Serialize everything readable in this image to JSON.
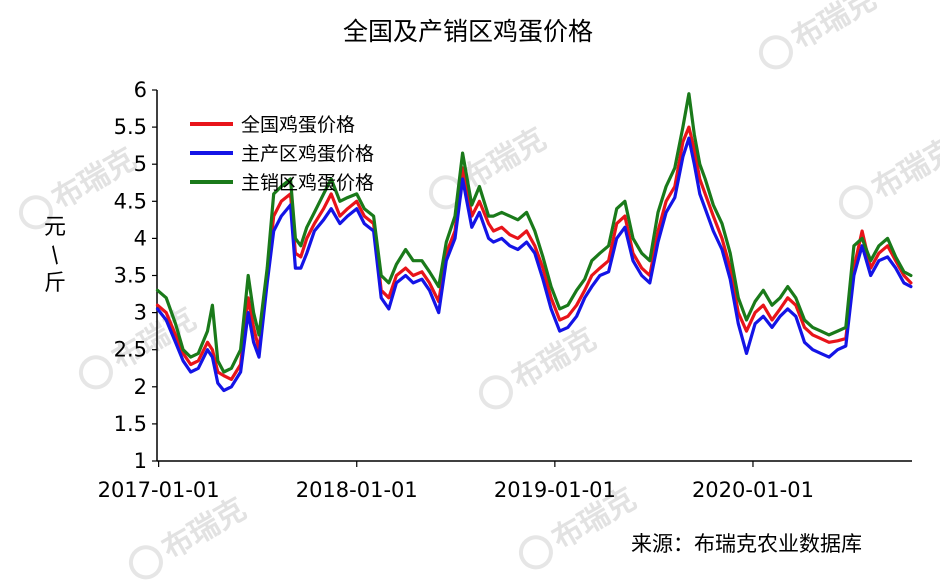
{
  "chart_data": {
    "type": "line",
    "title": "全国及产销区鸡蛋价格",
    "ylabel": "元/斤",
    "source": "来源：布瑞克农业数据库",
    "watermark": "布瑞克",
    "ylim": [
      1,
      6
    ],
    "yticks": [
      "1",
      "1.5",
      "2",
      "2.5",
      "3",
      "3.5",
      "4",
      "4.5",
      "5",
      "5.5",
      "6"
    ],
    "xlim": [
      "2016-12-29",
      "2020-10-20"
    ],
    "xticks": [
      {
        "label": "2017-01-01",
        "date": "2017-01-01"
      },
      {
        "label": "2018-01-01",
        "date": "2018-01-01"
      },
      {
        "label": "2019-01-01",
        "date": "2019-01-01"
      },
      {
        "label": "2020-01-01",
        "date": "2020-01-01"
      }
    ],
    "legend_position": "top-left",
    "x": [
      "2016-12-30",
      "2017-01-15",
      "2017-02-01",
      "2017-02-15",
      "2017-03-01",
      "2017-03-15",
      "2017-04-01",
      "2017-04-10",
      "2017-04-20",
      "2017-05-01",
      "2017-05-15",
      "2017-06-01",
      "2017-06-15",
      "2017-06-25",
      "2017-07-05",
      "2017-07-20",
      "2017-08-01",
      "2017-08-15",
      "2017-09-01",
      "2017-09-10",
      "2017-09-20",
      "2017-10-01",
      "2017-10-15",
      "2017-11-01",
      "2017-11-15",
      "2017-12-01",
      "2017-12-15",
      "2018-01-01",
      "2018-01-15",
      "2018-02-01",
      "2018-02-15",
      "2018-03-01",
      "2018-03-15",
      "2018-04-01",
      "2018-04-15",
      "2018-05-01",
      "2018-05-15",
      "2018-06-01",
      "2018-06-15",
      "2018-07-01",
      "2018-07-15",
      "2018-08-01",
      "2018-08-15",
      "2018-09-01",
      "2018-09-10",
      "2018-09-25",
      "2018-10-10",
      "2018-10-25",
      "2018-11-10",
      "2018-11-25",
      "2018-12-10",
      "2018-12-25",
      "2019-01-10",
      "2019-01-25",
      "2019-02-10",
      "2019-02-25",
      "2019-03-10",
      "2019-03-25",
      "2019-04-10",
      "2019-04-25",
      "2019-05-10",
      "2019-05-25",
      "2019-06-10",
      "2019-06-25",
      "2019-07-10",
      "2019-07-25",
      "2019-08-10",
      "2019-08-25",
      "2019-09-05",
      "2019-09-15",
      "2019-09-25",
      "2019-10-05",
      "2019-10-20",
      "2019-11-05",
      "2019-11-20",
      "2019-12-05",
      "2019-12-20",
      "2020-01-05",
      "2020-01-20",
      "2020-02-05",
      "2020-02-20",
      "2020-03-05",
      "2020-03-20",
      "2020-04-05",
      "2020-04-20",
      "2020-05-05",
      "2020-05-20",
      "2020-06-05",
      "2020-06-20",
      "2020-07-05",
      "2020-07-20",
      "2020-08-05",
      "2020-08-20",
      "2020-09-05",
      "2020-09-20",
      "2020-10-05",
      "2020-10-18"
    ],
    "series": [
      {
        "name": "全国鸡蛋价格",
        "color": "#e8141a",
        "values": [
          3.1,
          3.0,
          2.7,
          2.45,
          2.3,
          2.35,
          2.6,
          2.5,
          2.2,
          2.15,
          2.1,
          2.3,
          3.2,
          2.8,
          2.5,
          3.5,
          4.3,
          4.5,
          4.6,
          3.8,
          3.75,
          4.0,
          4.2,
          4.4,
          4.6,
          4.3,
          4.4,
          4.5,
          4.3,
          4.2,
          3.3,
          3.2,
          3.5,
          3.6,
          3.5,
          3.55,
          3.4,
          3.15,
          3.8,
          4.1,
          4.95,
          4.3,
          4.5,
          4.2,
          4.1,
          4.15,
          4.05,
          4.0,
          4.1,
          3.9,
          3.6,
          3.2,
          2.9,
          2.95,
          3.1,
          3.3,
          3.5,
          3.6,
          3.7,
          4.2,
          4.3,
          3.8,
          3.6,
          3.5,
          4.1,
          4.5,
          4.7,
          5.3,
          5.5,
          5.2,
          4.8,
          4.6,
          4.3,
          4.0,
          3.6,
          3.0,
          2.75,
          3.0,
          3.1,
          2.9,
          3.05,
          3.2,
          3.1,
          2.8,
          2.7,
          2.65,
          2.6,
          2.62,
          2.65,
          3.6,
          4.1,
          3.6,
          3.8,
          3.9,
          3.7,
          3.5,
          3.4
        ]
      },
      {
        "name": "主产区鸡蛋价格",
        "color": "#1414e6",
        "values": [
          3.05,
          2.9,
          2.6,
          2.35,
          2.2,
          2.25,
          2.5,
          2.4,
          2.05,
          1.95,
          2.0,
          2.2,
          3.0,
          2.6,
          2.4,
          3.4,
          4.1,
          4.3,
          4.45,
          3.6,
          3.6,
          3.8,
          4.1,
          4.25,
          4.4,
          4.2,
          4.3,
          4.4,
          4.2,
          4.1,
          3.2,
          3.05,
          3.4,
          3.5,
          3.4,
          3.45,
          3.3,
          3.0,
          3.7,
          4.0,
          4.8,
          4.15,
          4.35,
          4.0,
          3.95,
          4.0,
          3.9,
          3.85,
          3.95,
          3.8,
          3.45,
          3.05,
          2.75,
          2.8,
          2.95,
          3.2,
          3.35,
          3.5,
          3.55,
          4.0,
          4.15,
          3.7,
          3.5,
          3.4,
          3.95,
          4.35,
          4.55,
          5.1,
          5.35,
          5.0,
          4.6,
          4.4,
          4.1,
          3.85,
          3.45,
          2.85,
          2.45,
          2.85,
          2.95,
          2.8,
          2.95,
          3.05,
          2.95,
          2.6,
          2.5,
          2.45,
          2.4,
          2.5,
          2.55,
          3.5,
          3.9,
          3.5,
          3.7,
          3.75,
          3.6,
          3.4,
          3.35
        ]
      },
      {
        "name": "主销区鸡蛋价格",
        "color": "#1a7a1a",
        "values": [
          3.3,
          3.2,
          2.85,
          2.5,
          2.4,
          2.45,
          2.75,
          3.1,
          2.35,
          2.2,
          2.25,
          2.5,
          3.5,
          3.0,
          2.7,
          3.6,
          4.6,
          4.7,
          4.8,
          4.0,
          3.9,
          4.15,
          4.35,
          4.6,
          4.8,
          4.5,
          4.55,
          4.6,
          4.4,
          4.3,
          3.5,
          3.4,
          3.65,
          3.85,
          3.7,
          3.7,
          3.55,
          3.35,
          3.95,
          4.3,
          5.15,
          4.45,
          4.7,
          4.3,
          4.3,
          4.35,
          4.3,
          4.25,
          4.35,
          4.1,
          3.75,
          3.35,
          3.05,
          3.1,
          3.3,
          3.45,
          3.7,
          3.8,
          3.9,
          4.4,
          4.5,
          4.0,
          3.8,
          3.7,
          4.35,
          4.7,
          4.95,
          5.5,
          5.95,
          5.4,
          5.0,
          4.8,
          4.45,
          4.2,
          3.8,
          3.2,
          2.9,
          3.15,
          3.3,
          3.1,
          3.2,
          3.35,
          3.2,
          2.9,
          2.8,
          2.75,
          2.7,
          2.75,
          2.8,
          3.9,
          4.0,
          3.7,
          3.9,
          4.0,
          3.75,
          3.55,
          3.5
        ]
      }
    ]
  }
}
